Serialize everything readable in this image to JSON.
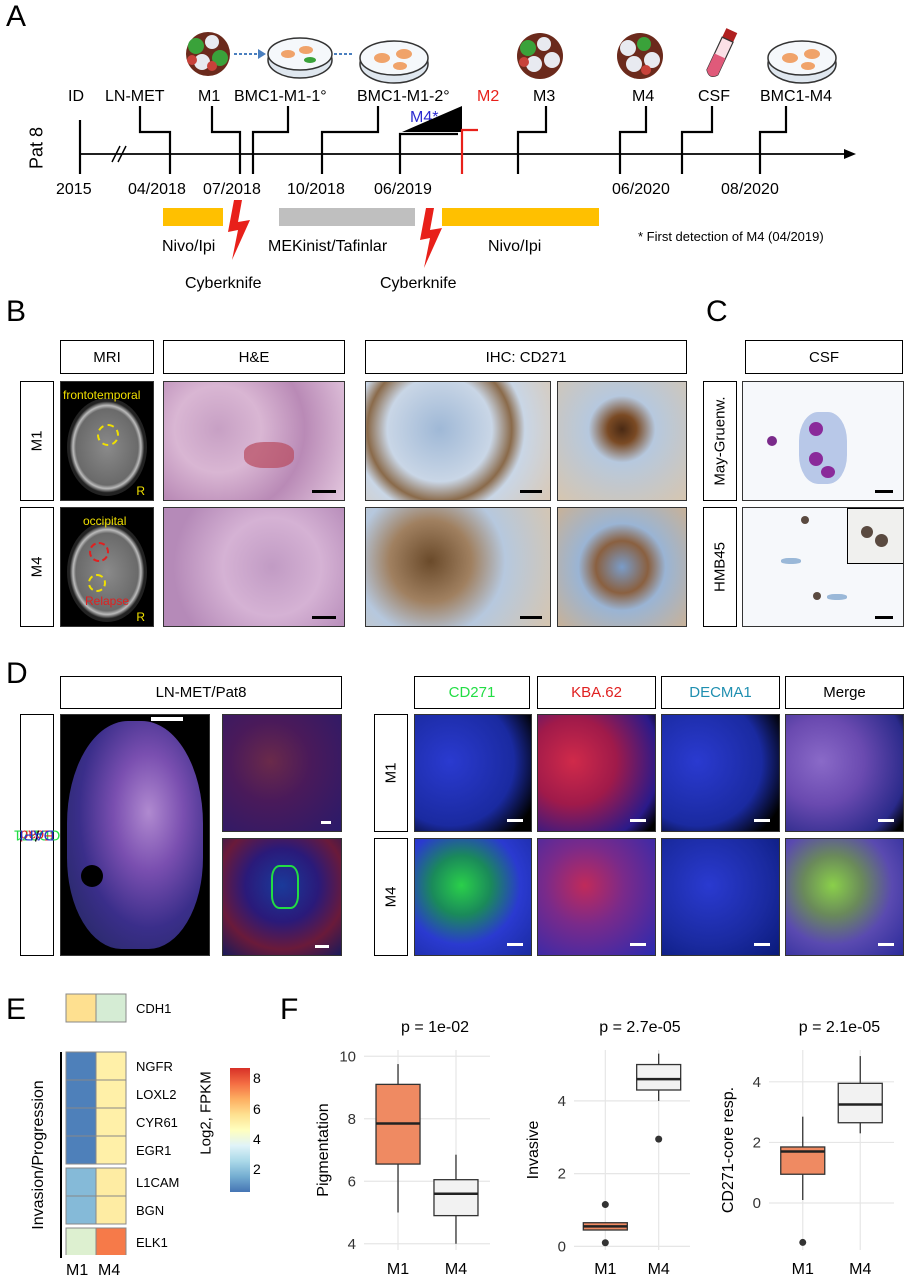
{
  "panels": {
    "A": "A",
    "B": "B",
    "C": "C",
    "D": "D",
    "E": "E",
    "F": "F"
  },
  "timeline": {
    "patient": "Pat 8",
    "top_labels": [
      "ID",
      "LN-MET",
      "M1",
      "BMC1-M1-1°",
      "BMC1-M1-2°",
      "M2",
      "M3",
      "M4",
      "CSF",
      "BMC1-M4"
    ],
    "m4_star": "M4*",
    "dates": [
      "2015",
      "04/2018",
      "07/2018",
      "10/2018",
      "06/2019",
      "06/2020",
      "08/2020"
    ],
    "therapies": [
      {
        "label": "Nivo/Ipi",
        "color": "#FFC000"
      },
      {
        "label": "MEKinist/Tafinlar",
        "color": "#BFBFBF"
      },
      {
        "label": "Nivo/Ipi",
        "color": "#FFC000"
      }
    ],
    "cyberknife": [
      "Cyberknife",
      "Cyberknife"
    ],
    "footnote": "* First detection of M4 (04/2019)"
  },
  "panel_b": {
    "headers": {
      "mri": "MRI",
      "he": "H&E",
      "ihc": "IHC: CD271"
    },
    "rows": [
      "M1",
      "M4"
    ],
    "mri_labels": {
      "m1_region": "frontotemporal",
      "m4_region": "occipital",
      "relapse": "Relapse",
      "r1": "R",
      "r2": "R"
    }
  },
  "panel_c": {
    "header": "CSF",
    "rows": [
      "May-Gruenw.",
      "HMB45"
    ]
  },
  "panel_d": {
    "left_header": "LN-MET/Pat8",
    "side_label_parts": [
      {
        "text": "CD271",
        "color": "#22DD44"
      },
      {
        "text": "/",
        "color": "#000"
      },
      {
        "text": "Ecad",
        "color": "#E02020"
      },
      {
        "text": "/",
        "color": "#000"
      },
      {
        "text": "DAPI",
        "color": "#2233CC"
      }
    ],
    "channels": [
      {
        "label": "CD271",
        "color": "#22DD44"
      },
      {
        "label": "KBA.62",
        "color": "#E02020"
      },
      {
        "label": "DECMA1",
        "color": "#1F8FB0"
      },
      {
        "label": "Merge",
        "color": "#000000"
      }
    ],
    "rows": [
      "M1",
      "M4"
    ]
  },
  "panel_e": {
    "group_label": "Invasion/Progression",
    "genes": [
      "CDH1",
      "NGFR",
      "LOXL2",
      "CYR61",
      "EGR1",
      "L1CAM",
      "BGN",
      "ELK1"
    ],
    "columns": [
      "M1",
      "M4"
    ],
    "values": [
      [
        5,
        3.5
      ],
      [
        1.2,
        4.5
      ],
      [
        1.2,
        4.5
      ],
      [
        1.2,
        4.5
      ],
      [
        1.2,
        4.5
      ],
      [
        2.3,
        4.6
      ],
      [
        2.3,
        4.6
      ],
      [
        3.6,
        6.8
      ]
    ],
    "colorbar_title": "Log2, FPKM",
    "colorbar_ticks": [
      "8",
      "6",
      "4",
      "2"
    ]
  },
  "chart_data": [
    {
      "type": "box",
      "categories": [
        "M1",
        "M4"
      ],
      "ylabel": "Pigmentation",
      "title": "p = 1e-02",
      "ylim": [
        3.8,
        10.2
      ],
      "yticks": [
        4,
        6,
        8,
        10
      ],
      "boxes": [
        {
          "min": 5,
          "q1": 6.55,
          "median": 7.85,
          "q3": 9.1,
          "max": 9.75,
          "outliers": []
        },
        {
          "min": 4,
          "q1": 4.9,
          "median": 5.6,
          "q3": 6.05,
          "max": 6.85,
          "outliers": []
        }
      ]
    },
    {
      "type": "box",
      "categories": [
        "M1",
        "M4"
      ],
      "ylabel": "Invasive",
      "title": "p = 2.7e-05",
      "ylim": [
        -0.1,
        5.4
      ],
      "yticks": [
        0,
        2,
        4
      ],
      "boxes": [
        {
          "min": 0.45,
          "q1": 0.45,
          "median": 0.55,
          "q3": 0.65,
          "max": 0.65,
          "outliers": [
            1.15,
            0.1
          ]
        },
        {
          "min": 4.0,
          "q1": 4.3,
          "median": 4.6,
          "q3": 5.0,
          "max": 5.3,
          "outliers": [
            2.95
          ]
        }
      ]
    },
    {
      "type": "box",
      "categories": [
        "M1",
        "M4"
      ],
      "ylabel": "CD271-core resp.",
      "title": "p = 2.1e-05",
      "ylim": [
        -1.55,
        5.05
      ],
      "yticks": [
        0,
        2,
        4
      ],
      "boxes": [
        {
          "min": 0.1,
          "q1": 0.95,
          "median": 1.7,
          "q3": 1.85,
          "max": 2.85,
          "outliers": [
            -1.3
          ]
        },
        {
          "min": 2.3,
          "q1": 2.65,
          "median": 3.25,
          "q3": 3.95,
          "max": 4.85,
          "outliers": []
        }
      ]
    }
  ],
  "colors": {
    "m1_box": "#EF8A62",
    "m4_box": "#F2F2F2",
    "red_accent": "#E8201A",
    "blue_accent": "#2B2BD0"
  }
}
